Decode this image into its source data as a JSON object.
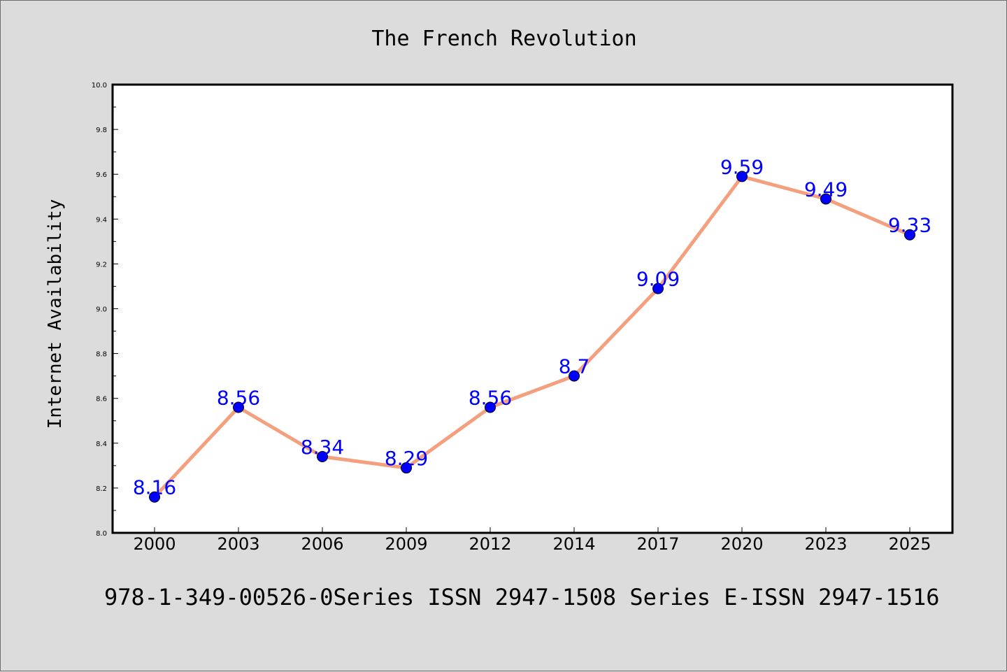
{
  "chart_data": {
    "type": "line",
    "title": "The French Revolution",
    "xlabel": "",
    "ylabel": "Internet Availability",
    "categories": [
      "2000",
      "2003",
      "2006",
      "2009",
      "2012",
      "2014",
      "2017",
      "2020",
      "2023",
      "2025"
    ],
    "series": [
      {
        "values": [
          8.16,
          8.56,
          8.34,
          8.29,
          8.56,
          8.7,
          9.09,
          9.59,
          9.49,
          9.33
        ],
        "data_labels": [
          "8.16",
          "8.56",
          "8.34",
          "8.29",
          "8.56",
          "8.7",
          "9.09",
          "9.59",
          "9.49",
          "9.33"
        ]
      }
    ],
    "ylim": [
      8.0,
      10.0
    ],
    "yticks": [
      "8.0",
      "8.2",
      "8.4",
      "8.6",
      "8.8",
      "9.0",
      "9.2",
      "9.4",
      "9.6",
      "9.8",
      "10.0"
    ],
    "grid": false,
    "legend": "none"
  },
  "footer": {
    "text": "978-1-349-00526-0Series ISSN 2947-1508 Series E-ISSN 2947-1516"
  },
  "colors": {
    "background": "#dcdcdc",
    "plot_background": "#ffffff",
    "line": "#f4a07f",
    "marker": "#0000ff",
    "data_label": "#0000ff"
  }
}
